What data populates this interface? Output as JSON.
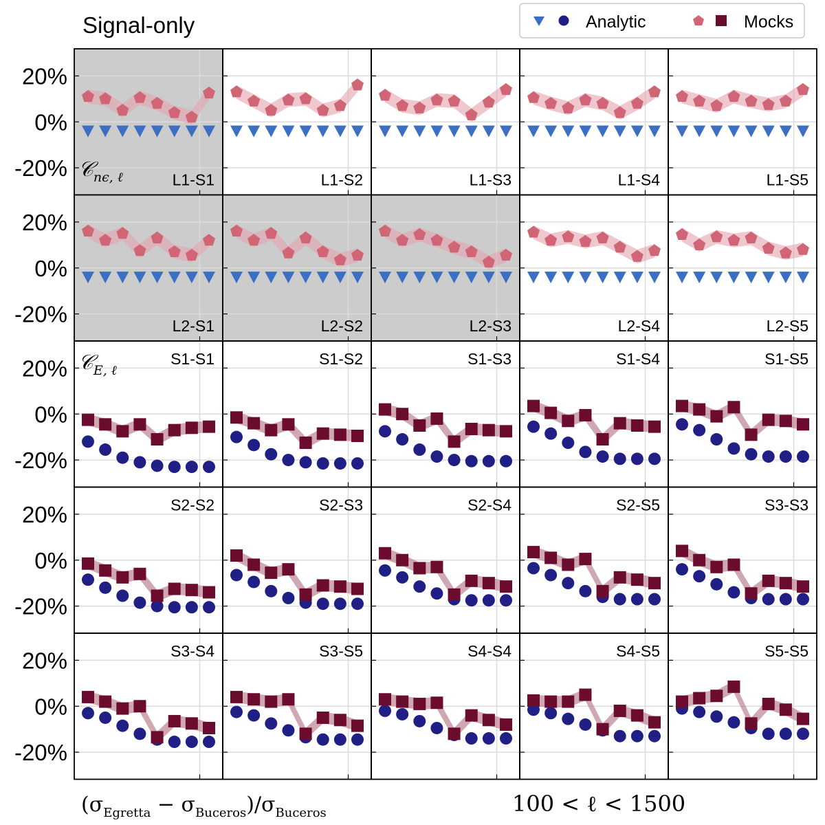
{
  "title": "Signal-only",
  "legend": {
    "analytic_label": "Analytic",
    "mocks_label": "Mocks"
  },
  "xlabel_left": "(σ_Egretta − σ_Buceros)/σ_Buceros",
  "xlabel_left_parts": {
    "open": "(σ",
    "sub1": "Egretta",
    "mid": " − σ",
    "sub2": "Buceros",
    "close": ")/σ",
    "sub3": "Buceros"
  },
  "xlabel_right": "100 < ℓ < 1500",
  "row_tags": [
    {
      "row": 0,
      "main": "𝒞",
      "sub": "nϵ, ℓ"
    },
    {
      "row": 2,
      "main": "𝒞",
      "sub": "E, ℓ"
    }
  ],
  "colors": {
    "analytic_triangle": "#3b6fc4",
    "analytic_circle": "#1f1f86",
    "mocks_pentagon": "#cf6575",
    "mocks_square": "#6b0c2e",
    "band_pentagon": "#e3a4ae",
    "band_square": "#b77a89",
    "shade": "#cccccc"
  },
  "chart_data": {
    "type": "scatter",
    "grid": true,
    "ylim": [
      -30,
      30
    ],
    "yticks": [
      "20%",
      "0%",
      "-20%"
    ],
    "ytick_values": [
      20,
      0,
      -20
    ],
    "n_points": 8,
    "panels": [
      {
        "label": "L1-S1",
        "kind": "ne",
        "shaded": true,
        "analytic": [
          -4,
          -4,
          -4,
          -4,
          -4,
          -4,
          -4,
          -4
        ],
        "mocks": [
          11,
          10,
          5,
          10.5,
          8,
          4,
          2,
          12.5
        ]
      },
      {
        "label": "L1-S2",
        "kind": "ne",
        "shaded": false,
        "analytic": [
          -4,
          -4,
          -4,
          -4,
          -4,
          -4,
          -4,
          -4
        ],
        "mocks": [
          13,
          9,
          5,
          9.5,
          10,
          5,
          7,
          16
        ]
      },
      {
        "label": "L1-S3",
        "kind": "ne",
        "shaded": false,
        "analytic": [
          -4,
          -4,
          -4,
          -4,
          -4,
          -4,
          -4,
          -4
        ],
        "mocks": [
          11.5,
          7,
          6,
          9.5,
          9,
          3,
          8.5,
          14
        ]
      },
      {
        "label": "L1-S4",
        "kind": "ne",
        "shaded": false,
        "analytic": [
          -4,
          -4,
          -4,
          -4,
          -4,
          -4,
          -4,
          -4
        ],
        "mocks": [
          10.5,
          8,
          6,
          9.5,
          8,
          4,
          8,
          13
        ]
      },
      {
        "label": "L1-S5",
        "kind": "ne",
        "shaded": false,
        "analytic": [
          -4,
          -4,
          -4,
          -4,
          -4,
          -4,
          -4,
          -4
        ],
        "mocks": [
          11,
          9,
          7,
          11,
          9,
          7.5,
          9,
          14
        ]
      },
      {
        "label": "L2-S1",
        "kind": "ne",
        "shaded": true,
        "analytic": [
          -4,
          -4,
          -4,
          -4,
          -4,
          -4,
          -4,
          -4
        ],
        "mocks": [
          16,
          12,
          15,
          7.5,
          13,
          7,
          5.5,
          12
        ]
      },
      {
        "label": "L2-S2",
        "kind": "ne",
        "shaded": true,
        "analytic": [
          -4,
          -4,
          -4,
          -4,
          -4,
          -4,
          -4,
          -4
        ],
        "mocks": [
          16,
          12,
          15,
          6.5,
          13,
          7,
          3.5,
          5.5
        ]
      },
      {
        "label": "L2-S3",
        "kind": "ne",
        "shaded": true,
        "analytic": [
          -4,
          -4,
          -4,
          -4,
          -4,
          -4,
          -4,
          -4
        ],
        "mocks": [
          16,
          12,
          14.5,
          12,
          9,
          7,
          2.5,
          5.5
        ]
      },
      {
        "label": "L2-S4",
        "kind": "ne",
        "shaded": false,
        "analytic": [
          -4,
          -4,
          -4,
          -4,
          -4,
          -4,
          -4,
          -4
        ],
        "mocks": [
          15.5,
          12,
          13.5,
          11.5,
          13,
          9,
          5,
          7.5
        ]
      },
      {
        "label": "L2-S5",
        "kind": "ne",
        "shaded": false,
        "analytic": [
          -4,
          -4,
          -4,
          -4,
          -4,
          -4,
          -4,
          -4
        ],
        "mocks": [
          14.5,
          10,
          13.5,
          12,
          13,
          8.5,
          6.5,
          8
        ]
      },
      {
        "label": "S1-S1",
        "kind": "E",
        "shaded": false,
        "analytic": [
          -12,
          -15.5,
          -19,
          -21,
          -22.5,
          -23,
          -23,
          -23
        ],
        "mocks": [
          -2.5,
          -4.5,
          -7.5,
          -4.5,
          -11,
          -7,
          -6,
          -5.5
        ]
      },
      {
        "label": "S1-S2",
        "kind": "E",
        "shaded": false,
        "analytic": [
          -10,
          -13.5,
          -17.5,
          -20,
          -21,
          -21.5,
          -21.5,
          -21.5
        ],
        "mocks": [
          -1.5,
          -4,
          -7,
          -4.5,
          -12.5,
          -8.5,
          -9,
          -9.5
        ]
      },
      {
        "label": "S1-S3",
        "kind": "E",
        "shaded": false,
        "analytic": [
          -7.5,
          -11,
          -15.5,
          -18.5,
          -20,
          -20.5,
          -20.5,
          -20.5
        ],
        "mocks": [
          2,
          0,
          -5,
          -2,
          -12,
          -6.5,
          -7,
          -7.5
        ]
      },
      {
        "label": "S1-S4",
        "kind": "E",
        "shaded": false,
        "analytic": [
          -5.5,
          -8.5,
          -12.5,
          -16.5,
          -18.5,
          -19.5,
          -19.5,
          -19.5
        ],
        "mocks": [
          3.5,
          0.5,
          -3,
          -0.5,
          -11,
          -4,
          -5,
          -5.5
        ]
      },
      {
        "label": "S1-S5",
        "kind": "E",
        "shaded": false,
        "analytic": [
          -4.5,
          -7,
          -11,
          -15,
          -17.5,
          -18.5,
          -18.5,
          -18.5
        ],
        "mocks": [
          3.5,
          2,
          -1,
          3,
          -9,
          -2.5,
          -3,
          -4.5
        ]
      },
      {
        "label": "S2-S2",
        "kind": "E",
        "shaded": false,
        "analytic": [
          -8.5,
          -12,
          -15.5,
          -18.5,
          -20,
          -20.5,
          -20.5,
          -20.5
        ],
        "mocks": [
          -1.5,
          -4.5,
          -7.5,
          -6,
          -15.5,
          -12.5,
          -13,
          -14
        ]
      },
      {
        "label": "S2-S3",
        "kind": "E",
        "shaded": false,
        "analytic": [
          -6.5,
          -9.5,
          -13.5,
          -16.5,
          -18.5,
          -19,
          -19,
          -19
        ],
        "mocks": [
          2,
          -2,
          -5.5,
          -4,
          -15,
          -11,
          -11.5,
          -12.5
        ]
      },
      {
        "label": "S2-S4",
        "kind": "E",
        "shaded": false,
        "analytic": [
          -4.5,
          -7.5,
          -11.5,
          -14.5,
          -17,
          -17.5,
          -17.5,
          -17.5
        ],
        "mocks": [
          3,
          0,
          -3.5,
          -3,
          -15,
          -9,
          -10,
          -11.5
        ]
      },
      {
        "label": "S2-S5",
        "kind": "E",
        "shaded": false,
        "analytic": [
          -3.5,
          -6.5,
          -10,
          -13.5,
          -16,
          -17,
          -17,
          -17
        ],
        "mocks": [
          3.5,
          1,
          -2,
          0.5,
          -13.5,
          -7.5,
          -8.5,
          -10
        ]
      },
      {
        "label": "S3-S3",
        "kind": "E",
        "shaded": false,
        "analytic": [
          -4,
          -7,
          -10.5,
          -14,
          -16.5,
          -17,
          -17,
          -17
        ],
        "mocks": [
          4,
          0,
          -3,
          -2,
          -14.5,
          -9,
          -10,
          -11.5
        ]
      },
      {
        "label": "S3-S4",
        "kind": "E",
        "shaded": false,
        "analytic": [
          -3,
          -5,
          -8.5,
          -12,
          -14.5,
          -15.5,
          -15.5,
          -15.5
        ],
        "mocks": [
          4,
          2,
          -1,
          0,
          -13.5,
          -6.5,
          -7.5,
          -9.5
        ]
      },
      {
        "label": "S3-S5",
        "kind": "E",
        "shaded": false,
        "analytic": [
          -2.5,
          -4,
          -7.5,
          -10.5,
          -13.5,
          -14.5,
          -14.5,
          -14.5
        ],
        "mocks": [
          4,
          3,
          2,
          3,
          -12,
          -5,
          -6,
          -8.5
        ]
      },
      {
        "label": "S4-S4",
        "kind": "E",
        "shaded": false,
        "analytic": [
          -2,
          -3.5,
          -6.5,
          -9.5,
          -12.5,
          -14,
          -14,
          -14
        ],
        "mocks": [
          3,
          2,
          1,
          1.5,
          -12,
          -4,
          -6,
          -8
        ]
      },
      {
        "label": "S4-S5",
        "kind": "E",
        "shaded": false,
        "analytic": [
          -1.5,
          -3,
          -5.5,
          -8,
          -10.5,
          -13,
          -13,
          -13
        ],
        "mocks": [
          2.5,
          2,
          2,
          5,
          -10,
          -2,
          -4,
          -7
        ]
      },
      {
        "label": "S5-S5",
        "kind": "E",
        "shaded": false,
        "analytic": [
          -1,
          -2.5,
          -4.5,
          -7,
          -9.5,
          -12,
          -12,
          -12
        ],
        "mocks": [
          2,
          3.5,
          4.5,
          8.5,
          -7.5,
          1,
          -1.5,
          -5.5
        ]
      }
    ]
  }
}
